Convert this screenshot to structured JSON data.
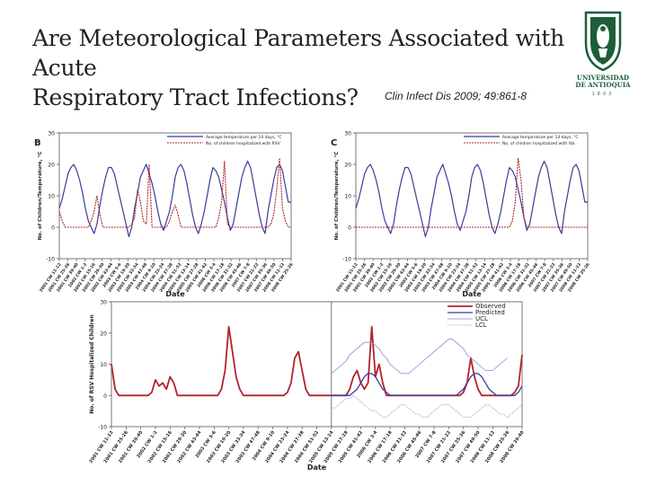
{
  "slide": {
    "title": "Are Meteorological Parameters Associated with Acute\nRespiratory Tract Infections?",
    "citation": "Clin Infect Dis 2009; 49:861-8"
  },
  "logo": {
    "name_line1": "UNIVERSIDAD",
    "name_line2": "DE ANTIOQUIA",
    "founded": "1803"
  },
  "colors": {
    "temperature": "#3b3b9a",
    "observed": "#b2222b",
    "predicted": "#3b3b9a",
    "bounds": "#8a8ad8"
  },
  "chart_data": [
    {
      "type": "line",
      "panel_label": "B",
      "ylabel": "No. of Children/Temperature, °C",
      "xlabel": "Date",
      "ylim": [
        -10,
        30
      ],
      "y_ticks": [
        -10,
        0,
        10,
        20,
        30
      ],
      "legend": [
        "Average temperature per 14 days, °C",
        "No. of children hospitalized with RSV"
      ],
      "x_tick_labels": [
        "2001 CW 11-12",
        "2001 CW 25-26",
        "2001 CW 39-40",
        "2002 CW 1-2",
        "2002 CW 15-16",
        "2002 CW 29-30",
        "2002 CW 43-44",
        "2003 CW 5-6",
        "2003 CW 19-20",
        "2003 CW 33-34",
        "2003 CW 47-48",
        "2004 CW 9-10",
        "2004 CW 23-24",
        "2004 CW 37-38",
        "2004 CW 51-52",
        "2005 CW 13-14",
        "2005 CW 27-28",
        "2005 CW 41-42",
        "2006 CW 3-4",
        "2006 CW 17-18",
        "2006 CW 31-32",
        "2006 CW 45-46",
        "2007 CW 7-8",
        "2007 CW 21-22",
        "2007 CW 35-36",
        "2007 CW 49-50",
        "2008 CW 11-12",
        "2008 CW 25-26"
      ],
      "series": [
        {
          "name": "Average temperature per 14 days, °C",
          "values": [
            6,
            9,
            13,
            17,
            19,
            20,
            18,
            15,
            11,
            6,
            2,
            0,
            -2,
            1,
            7,
            12,
            16,
            19,
            19,
            17,
            13,
            9,
            5,
            1,
            -3,
            0,
            6,
            11,
            16,
            18,
            20,
            17,
            14,
            10,
            5,
            1,
            -1,
            2,
            5,
            10,
            16,
            19,
            20,
            18,
            14,
            9,
            4,
            0,
            -2,
            1,
            5,
            10,
            15,
            19,
            18,
            16,
            12,
            8,
            3,
            -1,
            1,
            6,
            11,
            16,
            19,
            21,
            19,
            14,
            9,
            4,
            0,
            -2,
            5,
            10,
            15,
            19,
            20,
            18,
            13,
            8,
            8
          ]
        },
        {
          "name": "No. of children hospitalized with RSV",
          "values": [
            5,
            2,
            0,
            0,
            0,
            0,
            0,
            0,
            0,
            0,
            0,
            2,
            5,
            10,
            4,
            0,
            0,
            0,
            0,
            0,
            0,
            0,
            0,
            0,
            0,
            1,
            3,
            12,
            8,
            2,
            1,
            20,
            0,
            0,
            0,
            0,
            0,
            0,
            2,
            5,
            7,
            4,
            0,
            0,
            0,
            0,
            0,
            0,
            0,
            0,
            0,
            0,
            0,
            0,
            0,
            3,
            8,
            21,
            1,
            0,
            0,
            0,
            0,
            0,
            0,
            0,
            0,
            0,
            0,
            0,
            0,
            0,
            0,
            1,
            4,
            12,
            22,
            6,
            2,
            0,
            0
          ]
        }
      ]
    },
    {
      "type": "line",
      "panel_label": "C",
      "ylabel": "No. of Children/Temperature, °C",
      "xlabel": "Date",
      "ylim": [
        -10,
        30
      ],
      "y_ticks": [
        -10,
        0,
        10,
        20,
        30
      ],
      "legend": [
        "Average temperature per 14 days, °C",
        "No. of children hospitalized with IVa"
      ],
      "x_tick_labels": [
        "2001 CW 11-12",
        "2001 CW 25-26",
        "2001 CW 39-40",
        "2002 CW 1-2",
        "2002 CW 15-16",
        "2002 CW 29-30",
        "2002 CW 43-44",
        "2003 CW 5-6",
        "2003 CW 19-20",
        "2003 CW 33-34",
        "2003 CW 47-48",
        "2004 CW 9-10",
        "2004 CW 23-24",
        "2004 CW 37-38",
        "2004 CW 51-52",
        "2005 CW 13-14",
        "2005 CW 27-28",
        "2005 CW 41-42",
        "2006 CW 3-4",
        "2006 CW 17-18",
        "2006 CW 31-32",
        "2006 CW 45-46",
        "2007 CW 7-8",
        "2007 CW 21-22",
        "2007 CW 35-36",
        "2007 CW 49-50",
        "2008 CW 11-12",
        "2008 CW 25-26"
      ],
      "series": [
        {
          "name": "Average temperature per 14 days, °C",
          "values": [
            6,
            9,
            13,
            17,
            19,
            20,
            18,
            15,
            11,
            6,
            2,
            0,
            -2,
            1,
            7,
            12,
            16,
            19,
            19,
            17,
            13,
            9,
            5,
            1,
            -3,
            0,
            6,
            11,
            16,
            18,
            20,
            17,
            14,
            10,
            5,
            1,
            -1,
            2,
            5,
            10,
            16,
            19,
            20,
            18,
            14,
            9,
            4,
            0,
            -2,
            1,
            5,
            10,
            15,
            19,
            18,
            16,
            12,
            8,
            3,
            -1,
            1,
            6,
            11,
            16,
            19,
            21,
            19,
            14,
            9,
            4,
            0,
            -2,
            5,
            10,
            15,
            19,
            20,
            18,
            13,
            8,
            8
          ]
        },
        {
          "name": "No. of children hospitalized with IVa",
          "values": [
            0,
            0,
            0,
            0,
            0,
            0,
            0,
            0,
            0,
            0,
            0,
            0,
            0,
            0,
            0,
            0,
            0,
            0,
            0,
            0,
            0,
            0,
            0,
            0,
            0,
            0,
            0,
            0,
            0,
            0,
            0,
            0,
            0,
            0,
            0,
            0,
            0,
            0,
            0,
            0,
            0,
            0,
            0,
            0,
            0,
            0,
            0,
            0,
            0,
            0,
            0,
            0,
            0,
            0,
            2,
            8,
            22,
            15,
            3,
            0,
            0,
            0,
            0,
            0,
            0,
            0,
            0,
            0,
            0,
            0,
            0,
            0,
            0,
            0,
            0,
            0,
            0,
            0,
            0,
            0,
            0
          ]
        }
      ]
    },
    {
      "type": "line",
      "ylabel": "No. of RSV Hospitalized Children",
      "xlabel": "Date",
      "ylim": [
        -10,
        30
      ],
      "y_ticks": [
        -10,
        0,
        10,
        20,
        30
      ],
      "legend": [
        "Observed",
        "Predicted",
        "UCL",
        "LCL"
      ],
      "forecast_start_index": 60,
      "x_tick_labels": [
        "2001 CW 11-12",
        "2001 CW 25-26",
        "2001 CW 39-40",
        "2002 CW 1-2",
        "2002 CW 15-16",
        "2002 CW 29-30",
        "2002 CW 43-44",
        "2003 CW 5-6",
        "2003 CW 19-20",
        "2003 CW 33-34",
        "2003 CW 47-48",
        "2004 CW 9-10",
        "2004 CW 23-24",
        "2004 CW 37-38",
        "2004 CW 51-52",
        "2005 CW 13-14",
        "2005 CW 27-28",
        "2005 CW 41-42",
        "2006 CW 3-4",
        "2006 CW 17-18",
        "2006 CW 31-32",
        "2006 CW 45-46",
        "2007 CW 7-8",
        "2007 CW 21-22",
        "2007 CW 35-36",
        "2007 CW 49-50",
        "2008 CW 11-12",
        "2008 CW 25-26",
        "2008 CW 39-40"
      ],
      "series": [
        {
          "name": "Observed",
          "values": [
            10,
            2,
            0,
            0,
            0,
            0,
            0,
            0,
            0,
            0,
            0,
            1,
            5,
            3,
            4,
            2,
            6,
            4,
            0,
            0,
            0,
            0,
            0,
            0,
            0,
            0,
            0,
            0,
            0,
            0,
            2,
            8,
            22,
            14,
            6,
            2,
            0,
            0,
            0,
            0,
            0,
            0,
            0,
            0,
            0,
            0,
            0,
            0,
            1,
            4,
            12,
            14,
            8,
            2,
            0,
            0,
            0,
            0,
            0,
            0,
            0,
            0,
            0,
            0,
            0,
            2,
            6,
            8,
            4,
            2,
            4,
            22,
            6,
            10,
            4,
            0,
            0,
            0,
            0,
            0,
            0,
            0,
            0,
            0,
            0,
            0,
            0,
            0,
            0,
            0,
            0,
            0,
            0,
            0,
            0,
            0,
            1,
            4,
            12,
            6,
            2,
            0,
            0,
            0,
            0,
            0,
            0,
            0,
            0,
            0,
            1,
            3,
            13
          ]
        },
        {
          "name": "Predicted",
          "values": [
            null,
            null,
            null,
            null,
            null,
            null,
            null,
            null,
            null,
            null,
            null,
            null,
            null,
            null,
            null,
            null,
            null,
            null,
            null,
            null,
            null,
            null,
            null,
            null,
            null,
            null,
            null,
            null,
            null,
            null,
            null,
            null,
            null,
            null,
            null,
            null,
            null,
            null,
            null,
            null,
            null,
            null,
            null,
            null,
            null,
            null,
            null,
            null,
            null,
            null,
            null,
            null,
            null,
            null,
            null,
            null,
            null,
            null,
            null,
            null,
            0,
            0,
            0,
            0,
            0,
            0,
            1,
            2,
            4,
            6,
            7,
            7,
            6,
            4,
            2,
            1,
            0,
            0,
            0,
            0,
            0,
            0,
            0,
            0,
            0,
            0,
            0,
            0,
            0,
            0,
            0,
            0,
            0,
            0,
            0,
            1,
            2,
            4,
            6,
            7,
            7,
            6,
            4,
            2,
            1,
            0,
            0,
            0,
            0,
            0,
            0,
            1,
            3
          ]
        },
        {
          "name": "UCL",
          "values": [
            null,
            null,
            null,
            null,
            null,
            null,
            null,
            null,
            null,
            null,
            null,
            null,
            null,
            null,
            null,
            null,
            null,
            null,
            null,
            null,
            null,
            null,
            null,
            null,
            null,
            null,
            null,
            null,
            null,
            null,
            null,
            null,
            null,
            null,
            null,
            null,
            null,
            null,
            null,
            null,
            null,
            null,
            null,
            null,
            null,
            null,
            null,
            null,
            null,
            null,
            null,
            null,
            null,
            null,
            null,
            null,
            null,
            null,
            null,
            null,
            7,
            8,
            9,
            10,
            11,
            13,
            14,
            15,
            16,
            17,
            17,
            17,
            16,
            15,
            13,
            12,
            10,
            9,
            8,
            7,
            7,
            7,
            8,
            9,
            10,
            11,
            12,
            13,
            14,
            15,
            16,
            17,
            18,
            18,
            17,
            16,
            15,
            13,
            12,
            11,
            10,
            9,
            8,
            8,
            8,
            9,
            10,
            11,
            12
          ]
        },
        {
          "name": "LCL",
          "values": [
            null,
            null,
            null,
            null,
            null,
            null,
            null,
            null,
            null,
            null,
            null,
            null,
            null,
            null,
            null,
            null,
            null,
            null,
            null,
            null,
            null,
            null,
            null,
            null,
            null,
            null,
            null,
            null,
            null,
            null,
            null,
            null,
            null,
            null,
            null,
            null,
            null,
            null,
            null,
            null,
            null,
            null,
            null,
            null,
            null,
            null,
            null,
            null,
            null,
            null,
            null,
            null,
            null,
            null,
            null,
            null,
            null,
            null,
            null,
            null,
            -4,
            -4,
            -3,
            -2,
            -1,
            -1,
            0,
            -1,
            -2,
            -3,
            -4,
            -5,
            -5,
            -6,
            -7,
            -7,
            -6,
            -5,
            -4,
            -3,
            -3,
            -4,
            -5,
            -6,
            -6,
            -7,
            -7,
            -6,
            -5,
            -4,
            -3,
            -3,
            -3,
            -4,
            -5,
            -6,
            -7,
            -7,
            -7,
            -6,
            -5,
            -4,
            -3,
            -3,
            -4,
            -5,
            -6,
            -6,
            -7,
            -6,
            -5,
            -4,
            -3
          ]
        }
      ]
    }
  ]
}
